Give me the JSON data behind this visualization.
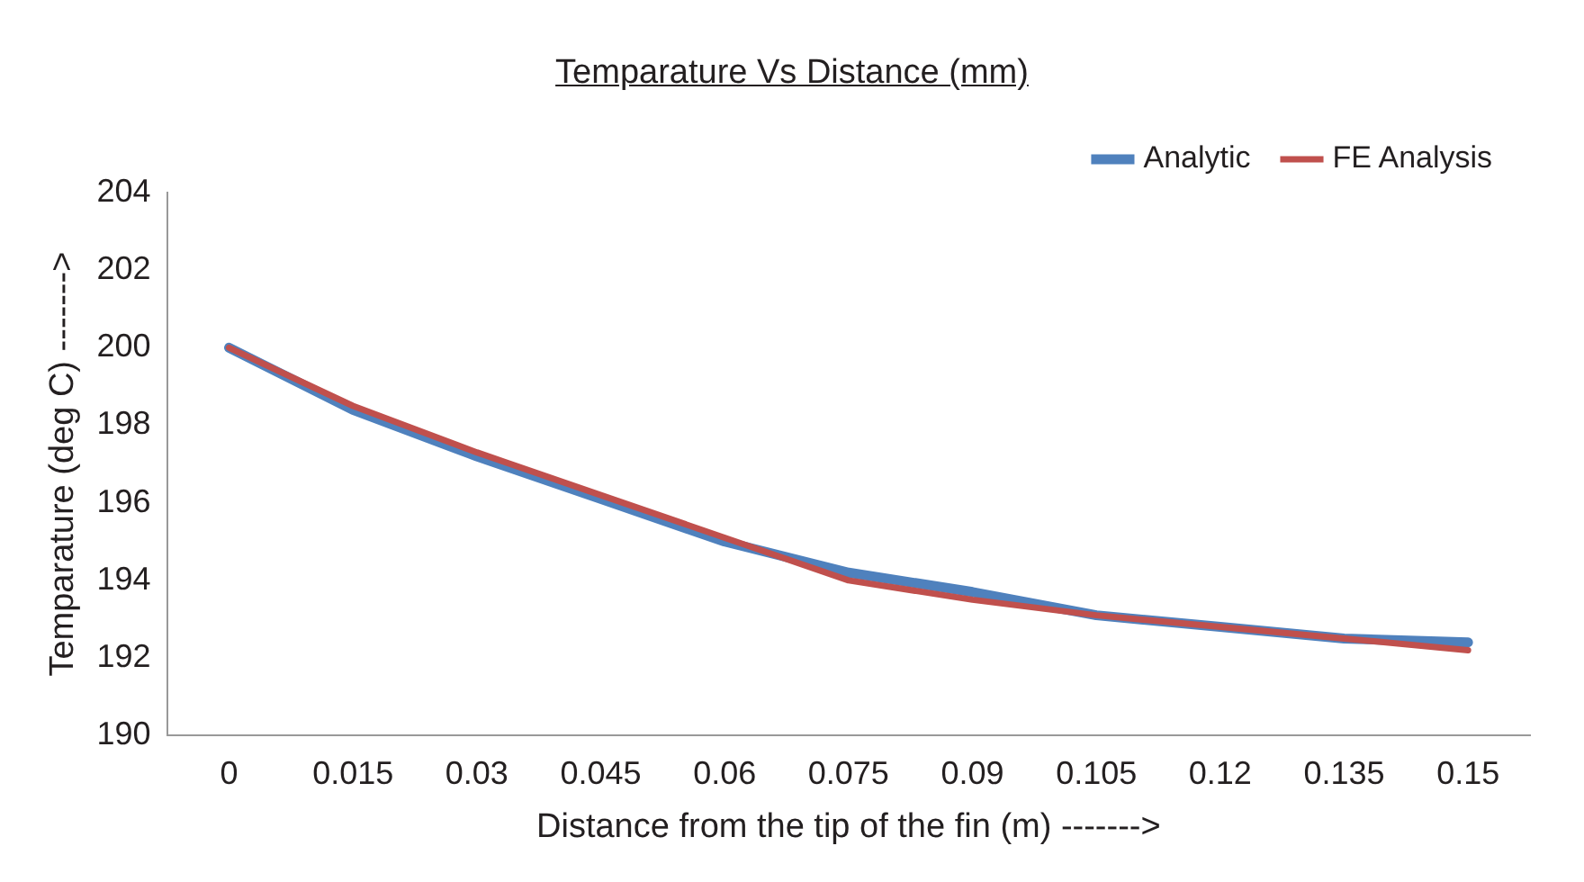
{
  "chart_data": {
    "type": "line",
    "title": "Temparature Vs Distance (mm)",
    "xlabel": "Distance from the tip of the fin (m) ------->",
    "ylabel": "Temparature (deg C) ------->",
    "categories": [
      "0",
      "0.015",
      "0.03",
      "0.045",
      "0.06",
      "0.075",
      "0.09",
      "0.105",
      "0.12",
      "0.135",
      "0.15"
    ],
    "series": [
      {
        "name": "Analytic",
        "color": "#4f81bd",
        "values": [
          200.0,
          198.4,
          197.2,
          196.1,
          195.0,
          194.2,
          193.7,
          193.1,
          192.8,
          192.5,
          192.4
        ]
      },
      {
        "name": "FE Analysis",
        "color": "#c0504d",
        "values": [
          200.0,
          198.5,
          197.3,
          196.2,
          195.1,
          194.0,
          193.5,
          193.1,
          192.8,
          192.5,
          192.2
        ]
      }
    ],
    "ylim": [
      190,
      204
    ],
    "yticks": [
      190,
      192,
      194,
      196,
      198,
      200,
      202,
      204
    ],
    "grid": false,
    "legend": "top right",
    "marker": "none",
    "line_style": "solid"
  }
}
